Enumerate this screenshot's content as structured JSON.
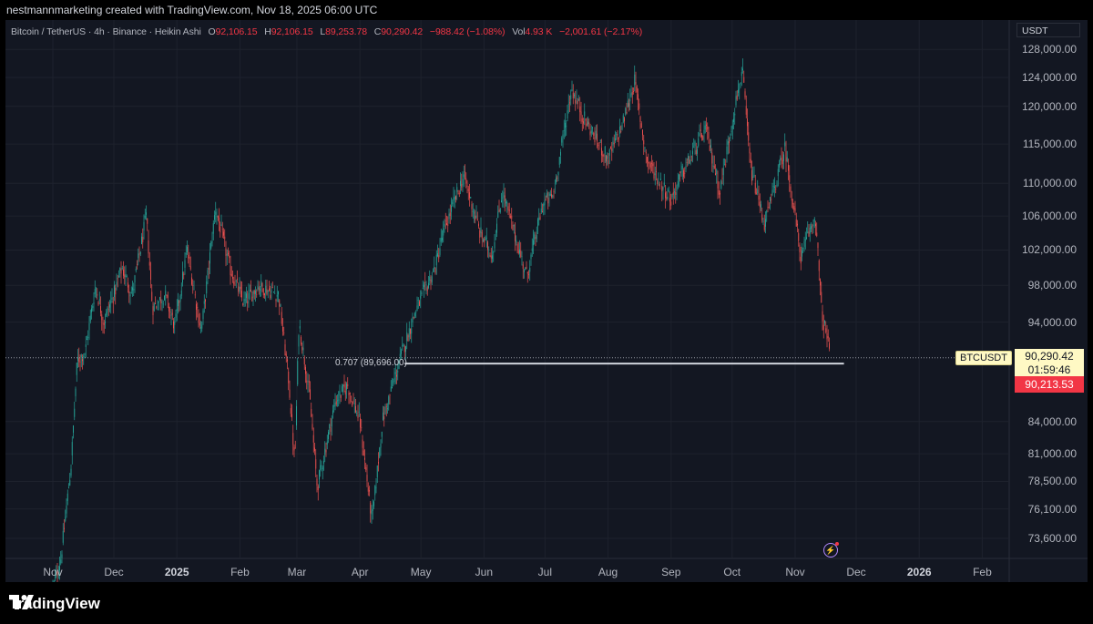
{
  "header": {
    "caption": "nestmannmarketing created with TradingView.com, Nov 18, 2025 06:00 UTC"
  },
  "legend": {
    "symbol": "Bitcoin / TetherUS · 4h · Binance · Heikin Ashi",
    "o_label": "O",
    "o": "92,106.15",
    "h_label": "H",
    "h": "92,106.15",
    "l_label": "L",
    "l": "89,253.78",
    "c_label": "C",
    "c": "90,290.42",
    "change": "−988.42 (−1.08%)",
    "vol_label": "Vol",
    "vol": "4.93 K",
    "vol_change": "−2,001.61 (−2.17%)"
  },
  "price_scale": {
    "unit": "USDT",
    "ticks": [
      "128,000.00",
      "124,000.00",
      "120,000.00",
      "115,000.00",
      "110,000.00",
      "106,000.00",
      "102,000.00",
      "98,000.00",
      "94,000.00",
      "84,000.00",
      "81,000.00",
      "78,500.00",
      "76,100.00",
      "73,600.00"
    ]
  },
  "time_scale": {
    "ticks": [
      {
        "label": "Nov",
        "bold": false
      },
      {
        "label": "Dec",
        "bold": false
      },
      {
        "label": "2025",
        "bold": true
      },
      {
        "label": "Feb",
        "bold": false
      },
      {
        "label": "Mar",
        "bold": false
      },
      {
        "label": "Apr",
        "bold": false
      },
      {
        "label": "May",
        "bold": false
      },
      {
        "label": "Jun",
        "bold": false
      },
      {
        "label": "Jul",
        "bold": false
      },
      {
        "label": "Aug",
        "bold": false
      },
      {
        "label": "Sep",
        "bold": false
      },
      {
        "label": "Oct",
        "bold": false
      },
      {
        "label": "Nov",
        "bold": false
      },
      {
        "label": "Dec",
        "bold": false
      },
      {
        "label": "2026",
        "bold": true
      },
      {
        "label": "Feb",
        "bold": false
      }
    ]
  },
  "markers": {
    "symbol_tag": "BTCUSDT",
    "price": "90,290.42",
    "countdown": "01:59:46",
    "last_price": "90,213.53",
    "fib_label": "0.707 (89,696.00)"
  },
  "colors": {
    "background": "#131722",
    "up": "#26a69a",
    "down": "#ef5350",
    "fib": "#d1d4dc"
  },
  "footer": {
    "brand": "TradingView"
  },
  "chart_data": {
    "type": "candlestick",
    "title": "Bitcoin / TetherUS · 4h · Binance · Heikin Ashi",
    "log_scale": true,
    "ylim": [
      71500,
      130000
    ],
    "fib_level": {
      "ratio": 0.707,
      "price": 89696.0,
      "from": "2025-04-23",
      "to": "2025-11-25"
    },
    "last_price": 90290.42,
    "close_path": [
      {
        "date": "2024-11-01",
        "price": 69500
      },
      {
        "date": "2024-11-05",
        "price": 72000
      },
      {
        "date": "2024-11-10",
        "price": 80000
      },
      {
        "date": "2024-11-13",
        "price": 90000
      },
      {
        "date": "2024-11-17",
        "price": 91000
      },
      {
        "date": "2024-11-22",
        "price": 98000
      },
      {
        "date": "2024-11-26",
        "price": 94000
      },
      {
        "date": "2024-12-01",
        "price": 97000
      },
      {
        "date": "2024-12-05",
        "price": 100000
      },
      {
        "date": "2024-12-10",
        "price": 97000
      },
      {
        "date": "2024-12-17",
        "price": 106000
      },
      {
        "date": "2024-12-20",
        "price": 95500
      },
      {
        "date": "2024-12-26",
        "price": 97000
      },
      {
        "date": "2024-12-31",
        "price": 93500
      },
      {
        "date": "2025-01-06",
        "price": 102000
      },
      {
        "date": "2025-01-13",
        "price": 93000
      },
      {
        "date": "2025-01-20",
        "price": 107000
      },
      {
        "date": "2025-01-27",
        "price": 100000
      },
      {
        "date": "2025-02-03",
        "price": 96000
      },
      {
        "date": "2025-02-10",
        "price": 98000
      },
      {
        "date": "2025-02-20",
        "price": 97000
      },
      {
        "date": "2025-02-25",
        "price": 88000
      },
      {
        "date": "2025-02-28",
        "price": 80000
      },
      {
        "date": "2025-03-02",
        "price": 94000
      },
      {
        "date": "2025-03-07",
        "price": 87000
      },
      {
        "date": "2025-03-11",
        "price": 78000
      },
      {
        "date": "2025-03-20",
        "price": 86000
      },
      {
        "date": "2025-03-26",
        "price": 87500
      },
      {
        "date": "2025-04-01",
        "price": 84000
      },
      {
        "date": "2025-04-07",
        "price": 75000
      },
      {
        "date": "2025-04-12",
        "price": 84000
      },
      {
        "date": "2025-04-22",
        "price": 91000
      },
      {
        "date": "2025-04-28",
        "price": 95000
      },
      {
        "date": "2025-05-08",
        "price": 100000
      },
      {
        "date": "2025-05-12",
        "price": 104000
      },
      {
        "date": "2025-05-22",
        "price": 111000
      },
      {
        "date": "2025-05-30",
        "price": 104000
      },
      {
        "date": "2025-06-05",
        "price": 101500
      },
      {
        "date": "2025-06-10",
        "price": 109000
      },
      {
        "date": "2025-06-22",
        "price": 99000
      },
      {
        "date": "2025-06-30",
        "price": 107500
      },
      {
        "date": "2025-07-05",
        "price": 108500
      },
      {
        "date": "2025-07-14",
        "price": 122500
      },
      {
        "date": "2025-07-20",
        "price": 118500
      },
      {
        "date": "2025-08-01",
        "price": 113000
      },
      {
        "date": "2025-08-08",
        "price": 117500
      },
      {
        "date": "2025-08-14",
        "price": 123500
      },
      {
        "date": "2025-08-20",
        "price": 113000
      },
      {
        "date": "2025-09-01",
        "price": 108000
      },
      {
        "date": "2025-09-06",
        "price": 111000
      },
      {
        "date": "2025-09-18",
        "price": 117000
      },
      {
        "date": "2025-09-25",
        "price": 109000
      },
      {
        "date": "2025-10-02",
        "price": 119500
      },
      {
        "date": "2025-10-06",
        "price": 125000
      },
      {
        "date": "2025-10-10",
        "price": 112000
      },
      {
        "date": "2025-10-17",
        "price": 105000
      },
      {
        "date": "2025-10-27",
        "price": 114500
      },
      {
        "date": "2025-11-04",
        "price": 101000
      },
      {
        "date": "2025-11-07",
        "price": 103500
      },
      {
        "date": "2025-11-11",
        "price": 106000
      },
      {
        "date": "2025-11-14",
        "price": 95000
      },
      {
        "date": "2025-11-17",
        "price": 92000
      },
      {
        "date": "2025-11-18",
        "price": 90290
      }
    ]
  }
}
